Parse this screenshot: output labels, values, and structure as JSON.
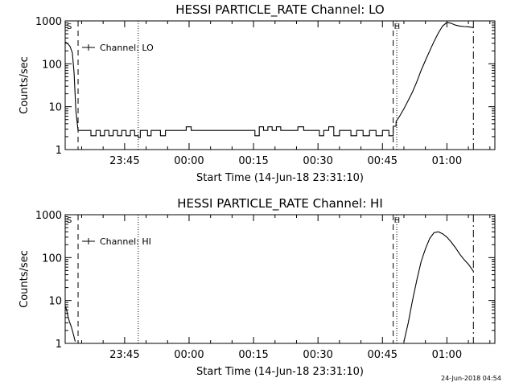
{
  "footer": {
    "timestamp": "24-Jun-2018 04:54"
  },
  "chart_data": [
    {
      "type": "line",
      "title": "HESSI PARTICLE_RATE Channel: LO",
      "xlabel": "Start Time (14-Jun-18 23:31:10)",
      "ylabel": "Counts/sec",
      "yscale": "log",
      "ylim": [
        1,
        1000
      ],
      "xlim": [
        "23:31:10",
        "01:11:10"
      ],
      "x_ticks": [
        "23:45",
        "00:00",
        "00:15",
        "00:30",
        "00:45",
        "01:00"
      ],
      "y_ticks": [
        "1",
        "10",
        "100",
        "1000"
      ],
      "legend": {
        "label": "Channel: LO",
        "position": "top-left"
      },
      "top_markers": [
        "S",
        "H"
      ],
      "vlines": [
        {
          "x": "23:34:10",
          "style": "dashed"
        },
        {
          "x": "23:48:10",
          "style": "dotted"
        },
        {
          "x": "00:47:30",
          "style": "dashed"
        },
        {
          "x": "00:48:20",
          "style": "dotted"
        },
        {
          "x": "01:06:10",
          "style": "dashdot"
        }
      ],
      "series": [
        {
          "x": [
            "23:31:10",
            "23:31:45",
            "23:32:20",
            "23:32:50",
            "23:33:15",
            "23:33:40",
            "23:34:10",
            "23:34:40",
            "23:35:20",
            "23:36:20",
            "23:37:10",
            "23:38:20",
            "23:39:20",
            "23:40:20",
            "23:41:20",
            "23:42:20",
            "23:43:20",
            "23:44:20",
            "23:45:20",
            "23:46:20",
            "23:47:20",
            "23:48:10",
            "23:48:40",
            "23:49:30",
            "23:50:20",
            "23:51:10",
            "23:52:20",
            "23:53:20",
            "23:54:30",
            "23:56:00",
            "23:57:30",
            "23:59:20",
            "00:00:30",
            "00:02:00",
            "00:04:00",
            "00:06:00",
            "00:08:00",
            "00:10:00",
            "00:12:00",
            "00:13:30",
            "00:14:20",
            "00:15:20",
            "00:16:20",
            "00:17:20",
            "00:18:20",
            "00:19:20",
            "00:20:20",
            "00:21:20",
            "00:22:30",
            "00:24:00",
            "00:25:20",
            "00:26:40",
            "00:27:50",
            "00:29:00",
            "00:30:20",
            "00:31:20",
            "00:32:30",
            "00:33:40",
            "00:35:00",
            "00:36:20",
            "00:37:40",
            "00:39:00",
            "00:40:30",
            "00:42:00",
            "00:43:30",
            "00:45:00",
            "00:46:30",
            "00:47:30",
            "00:48:10",
            "00:49:00",
            "00:50:00",
            "00:51:00",
            "00:52:00",
            "00:53:00",
            "00:54:00",
            "00:55:00",
            "00:56:00",
            "00:57:00",
            "00:58:00",
            "00:59:00",
            "01:00:00",
            "01:01:00",
            "01:02:00",
            "01:03:00",
            "01:04:00",
            "01:05:00",
            "01:06:10"
          ],
          "y": [
            320,
            300,
            250,
            180,
            60,
            8,
            2.8,
            2.8,
            2.8,
            2.8,
            2.1,
            2.8,
            2.1,
            2.8,
            2.1,
            2.8,
            2.1,
            2.8,
            2.1,
            2.8,
            2.1,
            1.9,
            2.8,
            2.8,
            2.1,
            2.8,
            2.8,
            2.1,
            2.8,
            2.8,
            2.8,
            3.4,
            2.8,
            2.8,
            2.8,
            2.8,
            2.8,
            2.8,
            2.8,
            2.8,
            2.8,
            2.1,
            3.4,
            2.8,
            3.4,
            2.8,
            3.4,
            2.8,
            2.8,
            2.8,
            3.4,
            2.8,
            2.8,
            2.8,
            2.1,
            2.8,
            3.4,
            2.1,
            2.8,
            2.8,
            2.1,
            2.8,
            2.1,
            2.8,
            2.1,
            2.8,
            2.1,
            3.5,
            4.5,
            6,
            9,
            14,
            22,
            38,
            70,
            120,
            200,
            330,
            520,
            760,
            920,
            880,
            800,
            760,
            740,
            730,
            700
          ]
        }
      ]
    },
    {
      "type": "line",
      "title": "HESSI PARTICLE_RATE Channel: HI",
      "xlabel": "Start Time (14-Jun-18 23:31:10)",
      "ylabel": "Counts/sec",
      "yscale": "log",
      "ylim": [
        1,
        1000
      ],
      "xlim": [
        "23:31:10",
        "01:11:10"
      ],
      "x_ticks": [
        "23:45",
        "00:00",
        "00:15",
        "00:30",
        "00:45",
        "01:00"
      ],
      "y_ticks": [
        "1",
        "10",
        "100",
        "1000"
      ],
      "legend": {
        "label": "Channel: HI",
        "position": "top-left"
      },
      "top_markers": [
        "S",
        "H"
      ],
      "vlines": [
        {
          "x": "23:34:10",
          "style": "dashed"
        },
        {
          "x": "23:48:10",
          "style": "dotted"
        },
        {
          "x": "00:47:30",
          "style": "dashed"
        },
        {
          "x": "00:48:20",
          "style": "dotted"
        },
        {
          "x": "01:06:10",
          "style": "dashdot"
        }
      ],
      "series": [
        {
          "x": [
            "23:31:10",
            "23:31:30",
            "23:31:50",
            "23:32:10",
            "23:32:30",
            "23:32:50",
            "23:33:10",
            "23:33:30"
          ],
          "y": [
            7.5,
            6,
            4.2,
            3.2,
            2.6,
            2,
            1.5,
            1.1
          ]
        },
        {
          "x": [
            "00:50:00",
            "00:51:00",
            "00:52:00",
            "00:53:00",
            "00:54:00",
            "00:55:00",
            "00:56:00",
            "00:57:00",
            "00:58:00",
            "00:59:00",
            "01:00:00",
            "01:01:00",
            "01:02:00",
            "01:03:00",
            "01:04:00",
            "01:05:00",
            "01:06:10"
          ],
          "y": [
            1.1,
            3,
            10,
            30,
            80,
            160,
            280,
            380,
            400,
            360,
            300,
            230,
            170,
            120,
            90,
            70,
            48
          ]
        }
      ]
    }
  ]
}
